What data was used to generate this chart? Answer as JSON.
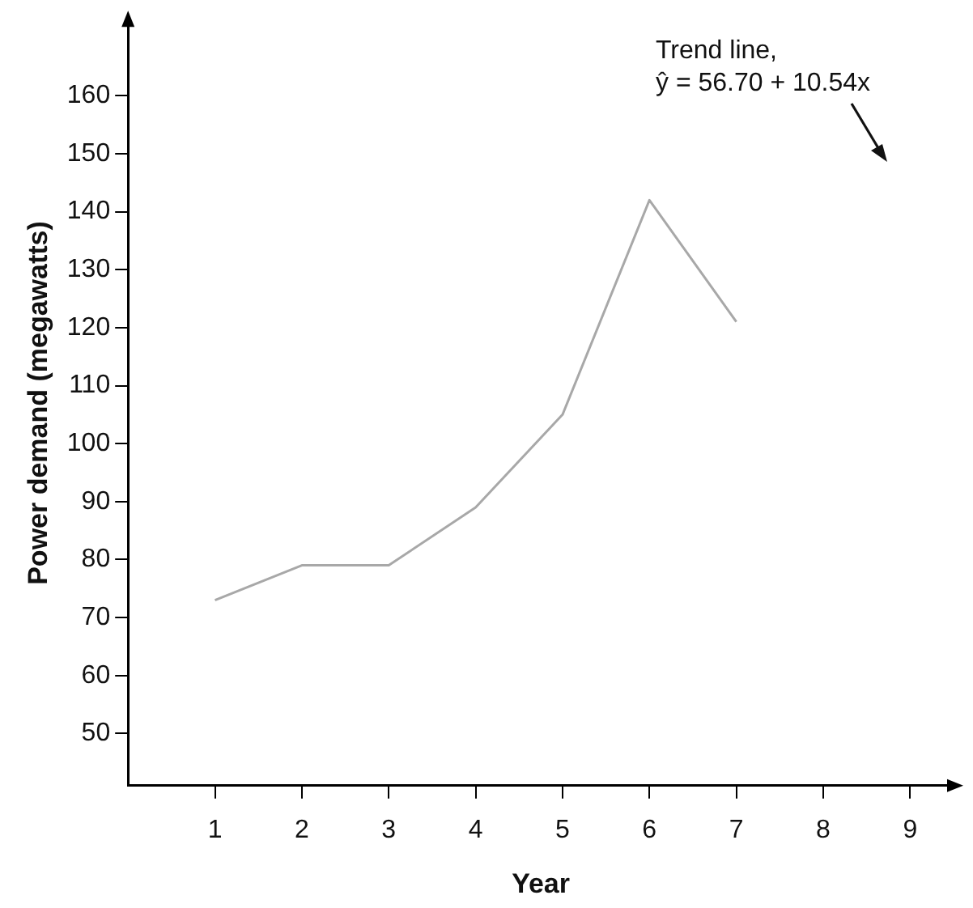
{
  "chart_data": {
    "type": "line",
    "xlabel": "Year",
    "ylabel": "Power demand (megawatts)",
    "annotations": [
      "Trend line,\nŷ = 56.70 + 10.54x"
    ],
    "x": [
      1,
      2,
      3,
      4,
      5,
      6,
      7
    ],
    "series": [
      {
        "color": "#a8a8a8",
        "values": [
          73,
          79,
          79,
          89,
          105,
          142,
          121
        ]
      }
    ],
    "xlim": [
      0,
      9.5
    ],
    "xticks": [
      1,
      2,
      3,
      4,
      5,
      6,
      7,
      8,
      9
    ],
    "ylim": [
      41,
      173
    ],
    "yticks": [
      50,
      60,
      70,
      80,
      90,
      100,
      110,
      120,
      130,
      140,
      150,
      160
    ],
    "grid": false,
    "legend": false,
    "marker": "none",
    "line_style": "solid"
  }
}
